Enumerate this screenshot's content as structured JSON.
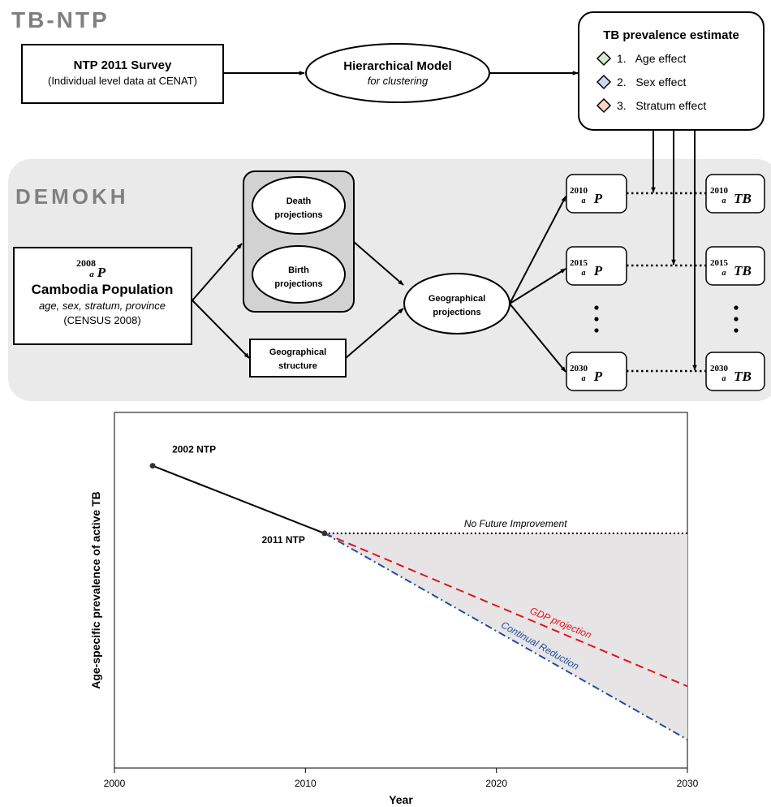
{
  "top_section": {
    "title": "TB-NTP",
    "survey": {
      "title": "NTP 2011 Survey",
      "subtitle": "(Individual level data at CENAT)"
    },
    "model": {
      "title": "Hierarchical Model",
      "subtitle": "for clustering"
    },
    "estimate": {
      "title": "TB prevalence estimate",
      "effects": [
        {
          "label": "1.   Age effect",
          "color": "#d5ead0"
        },
        {
          "label": "2.   Sex effect",
          "color": "#ccd9f0"
        },
        {
          "label": "3.   Stratum effect",
          "color": "#f7d5bf"
        }
      ]
    }
  },
  "demokh_section": {
    "title": "DEMOKH",
    "population": {
      "symbol_sup": "2008",
      "symbol_sub": "a",
      "symbol_main": "P",
      "title": "Cambodia Population",
      "attributes": "age, sex, stratum, province",
      "source": "(CENSUS 2008)"
    },
    "death": [
      "Death",
      "projections"
    ],
    "birth": [
      "Birth",
      "projections"
    ],
    "geo_structure": [
      "Geographical",
      "structure"
    ],
    "geo_projections": [
      "Geographical",
      "projections"
    ],
    "p_boxes": [
      {
        "sup": "2010",
        "sub": "a",
        "main": "P"
      },
      {
        "sup": "2015",
        "sub": "a",
        "main": "P"
      },
      {
        "sup": "2030",
        "sub": "a",
        "main": "P"
      }
    ],
    "tb_boxes": [
      {
        "sup": "2010",
        "sub": "a",
        "main": "TB"
      },
      {
        "sup": "2015",
        "sub": "a",
        "main": "TB"
      },
      {
        "sup": "2030",
        "sub": "a",
        "main": "TB"
      }
    ]
  },
  "chart_data": {
    "type": "line",
    "title": "",
    "xlabel": "Year",
    "ylabel": "Age-specific prevalence of active TB",
    "xlim": [
      2000,
      2030
    ],
    "ylim": [
      0,
      100
    ],
    "xticks": [
      2000,
      2010,
      2020,
      2030
    ],
    "grid": false,
    "points": [
      {
        "label": "2002 NTP",
        "x": 2002,
        "y": 85
      },
      {
        "label": "2011 NTP",
        "x": 2011,
        "y": 66
      }
    ],
    "series": [
      {
        "name": "No Future Improvement",
        "color": "#000000",
        "style": "dotted",
        "x": [
          2011,
          2030
        ],
        "y": [
          66,
          66
        ]
      },
      {
        "name": "GDP projection",
        "color": "#e0141e",
        "style": "dashed",
        "x": [
          2011,
          2030
        ],
        "y": [
          66,
          23
        ]
      },
      {
        "name": "Continual Reduction",
        "color": "#1f4e9c",
        "style": "dashdot",
        "x": [
          2011,
          2030
        ],
        "y": [
          66,
          8
        ]
      }
    ],
    "shaded_area": {
      "color": "#e6e4e5",
      "between": [
        "No Future Improvement",
        "Continual Reduction"
      ]
    }
  }
}
